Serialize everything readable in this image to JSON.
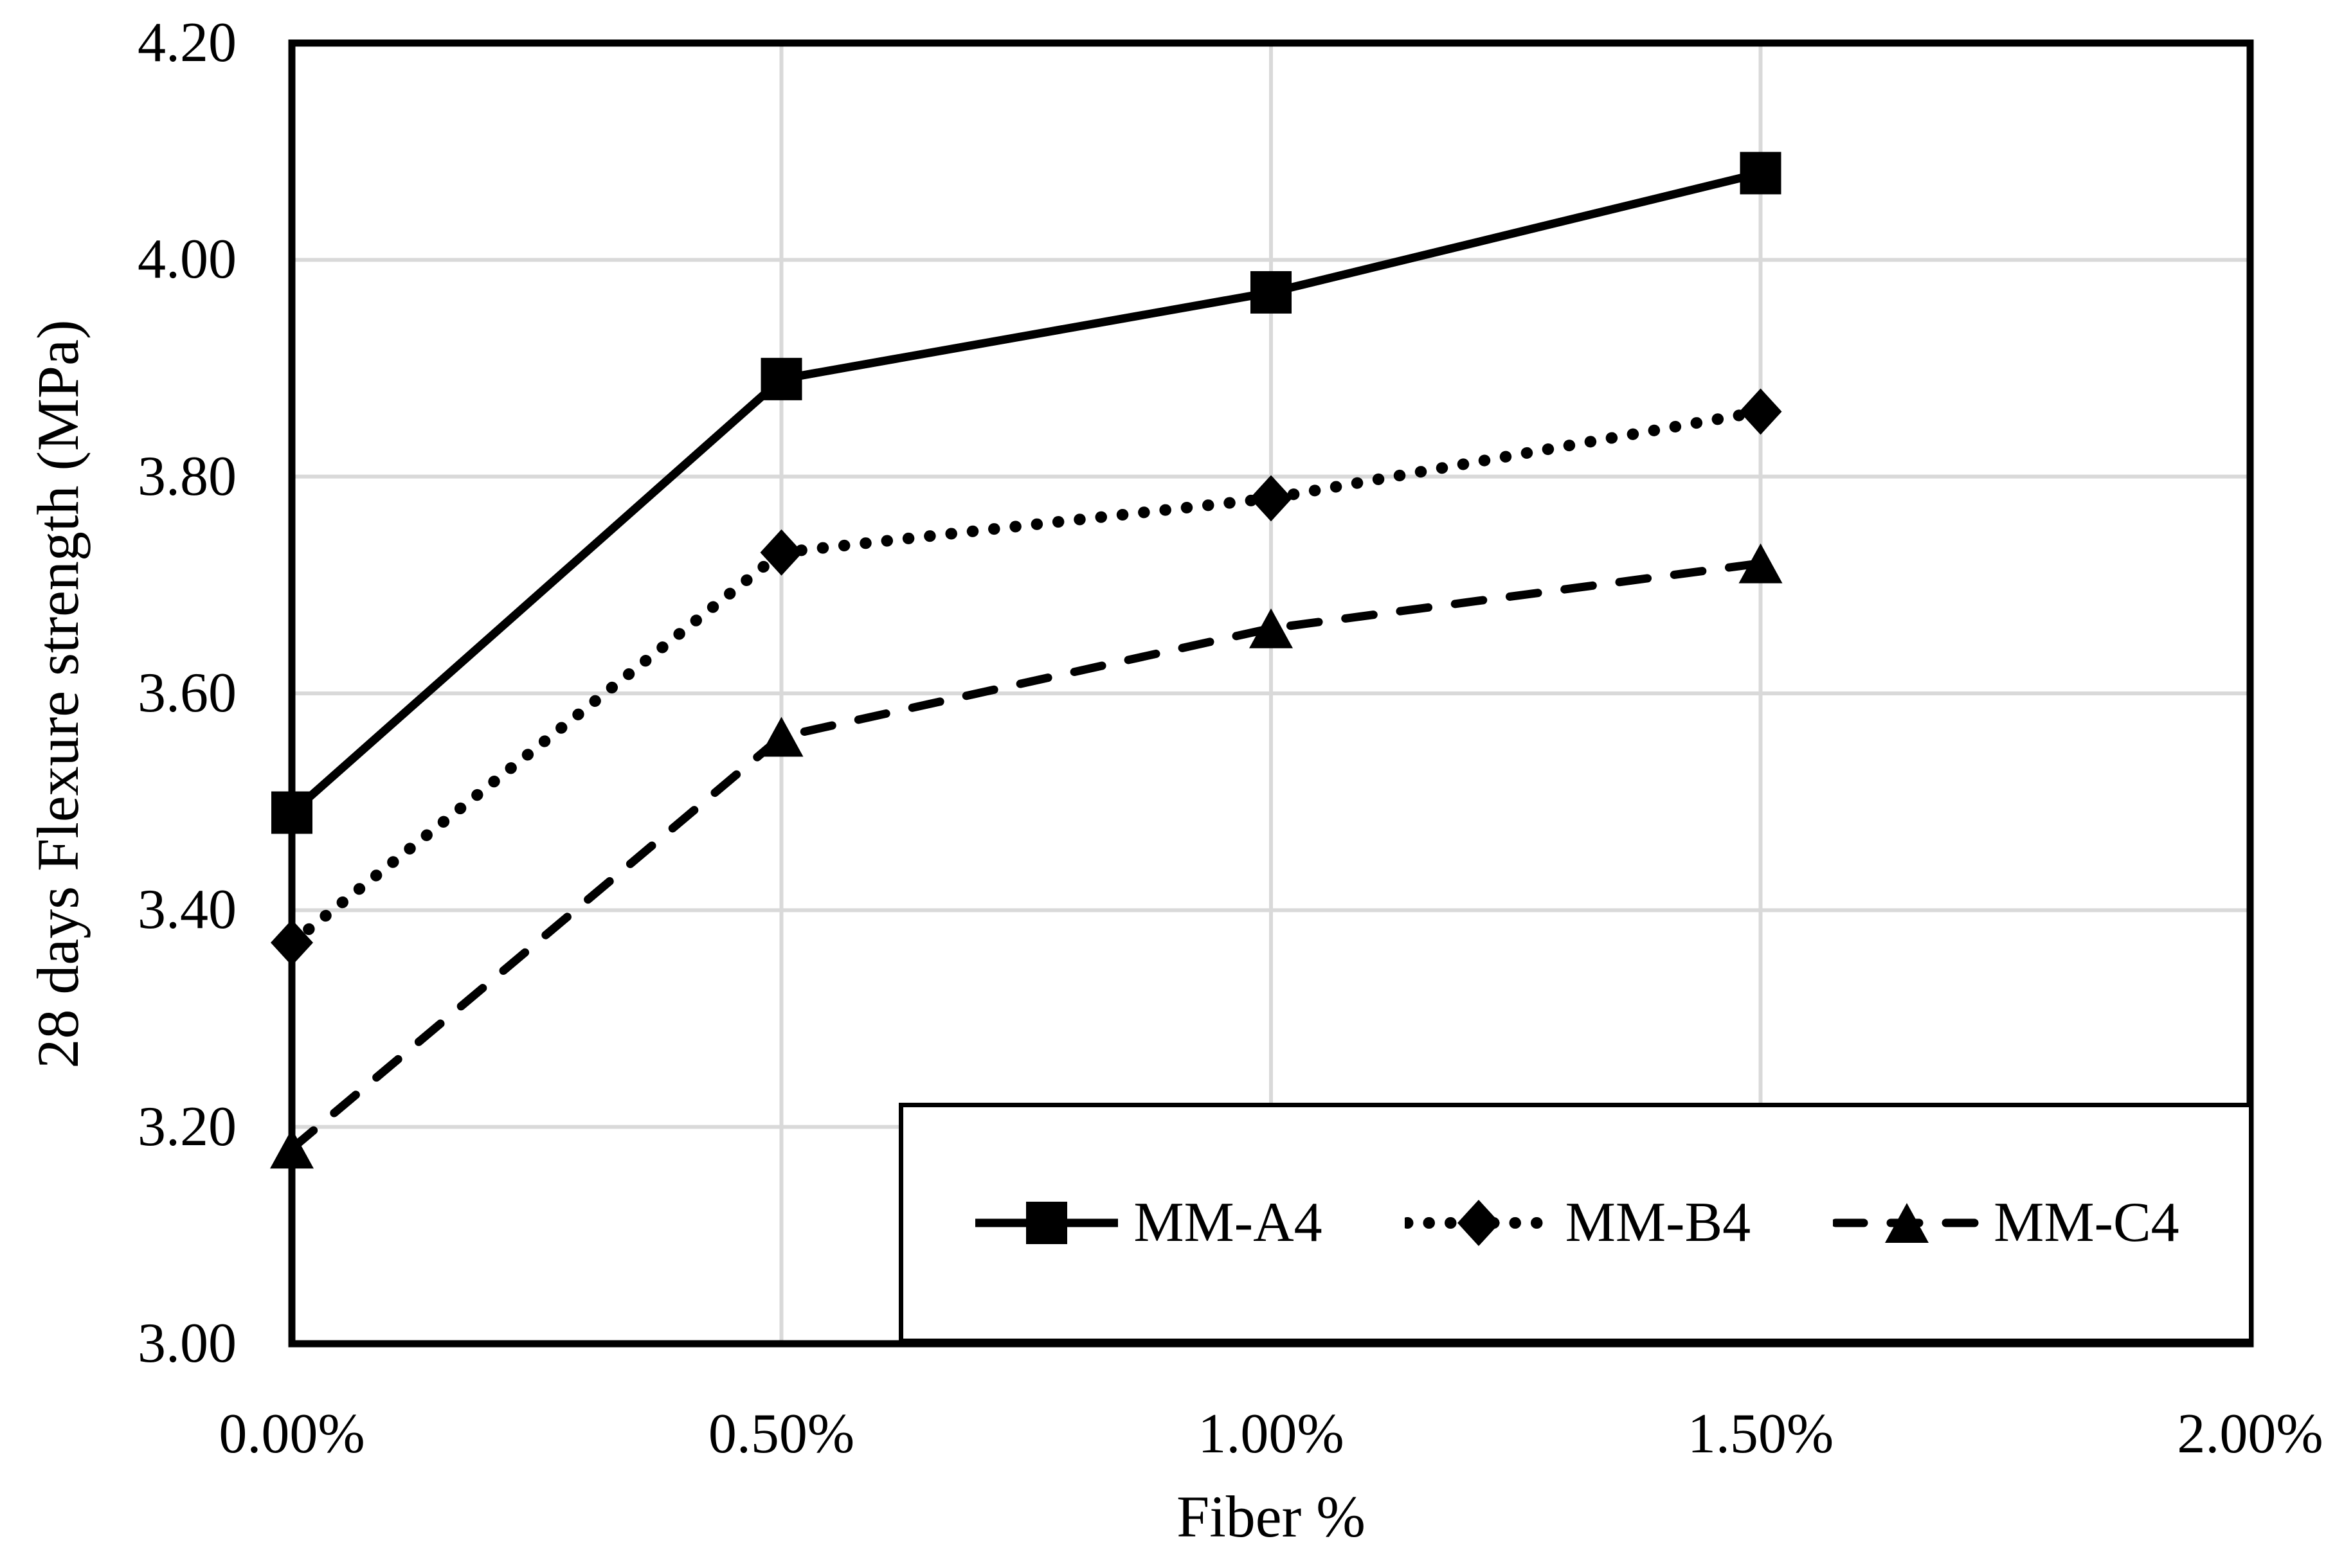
{
  "chart_data": {
    "type": "line",
    "title": "",
    "xlabel": "Fiber %",
    "ylabel": "28 days Flexure strength (MPa)",
    "xlim": [
      0,
      2
    ],
    "ylim": [
      3.0,
      4.2
    ],
    "grid": true,
    "legend_position": "inside-bottom-right-box",
    "x_ticks": [
      0,
      0.5,
      1,
      1.5,
      2
    ],
    "x_tick_labels": [
      "0.00%",
      "0.50%",
      "1.00%",
      "1.50%",
      "2.00%"
    ],
    "y_ticks": [
      3.0,
      3.2,
      3.4,
      3.6,
      3.8,
      4.0,
      4.2
    ],
    "y_tick_labels": [
      "3.00",
      "3.20",
      "3.40",
      "3.60",
      "3.80",
      "4.00",
      "4.20"
    ],
    "x": [
      0,
      0.5,
      1,
      1.5
    ],
    "series": [
      {
        "name": "MM-A4",
        "marker": "square",
        "line_style": "solid",
        "values": [
          3.49,
          3.89,
          3.97,
          4.08
        ]
      },
      {
        "name": "MM-B4",
        "marker": "diamond",
        "line_style": "dotted",
        "values": [
          3.37,
          3.73,
          3.78,
          3.86
        ]
      },
      {
        "name": "MM-C4",
        "marker": "triangle",
        "line_style": "dashed",
        "values": [
          3.18,
          3.56,
          3.66,
          3.72
        ]
      }
    ],
    "colors": {
      "series": "#000000",
      "gridline": "#d9d9d9",
      "axis": "#000000",
      "background": "#ffffff",
      "text": "#000000"
    }
  }
}
